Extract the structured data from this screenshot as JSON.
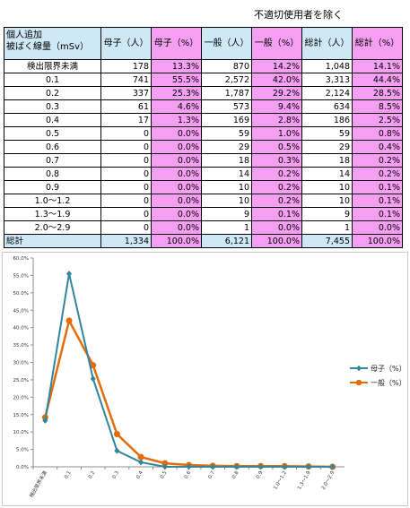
{
  "note": "不適切使用者を除く",
  "table": {
    "header": {
      "label_line1": "個人追加",
      "label_line2": "被ばく線量（mSv）",
      "cols": [
        "母子（人）",
        "母子（%）",
        "一般（人）",
        "一般（%）",
        "総計（人）",
        "総計（%）"
      ]
    },
    "rows": [
      {
        "label": "検出限界未満",
        "c1": "178",
        "c2": "13.3%",
        "c3": "870",
        "c4": "14.2%",
        "c5": "1,048",
        "c6": "14.1%"
      },
      {
        "label": "0.1",
        "c1": "741",
        "c2": "55.5%",
        "c3": "2,572",
        "c4": "42.0%",
        "c5": "3,313",
        "c6": "44.4%"
      },
      {
        "label": "0.2",
        "c1": "337",
        "c2": "25.3%",
        "c3": "1,787",
        "c4": "29.2%",
        "c5": "2,124",
        "c6": "28.5%"
      },
      {
        "label": "0.3",
        "c1": "61",
        "c2": "4.6%",
        "c3": "573",
        "c4": "9.4%",
        "c5": "634",
        "c6": "8.5%"
      },
      {
        "label": "0.4",
        "c1": "17",
        "c2": "1.3%",
        "c3": "169",
        "c4": "2.8%",
        "c5": "186",
        "c6": "2.5%"
      },
      {
        "label": "0.5",
        "c1": "0",
        "c2": "0.0%",
        "c3": "59",
        "c4": "1.0%",
        "c5": "59",
        "c6": "0.8%"
      },
      {
        "label": "0.6",
        "c1": "0",
        "c2": "0.0%",
        "c3": "29",
        "c4": "0.5%",
        "c5": "29",
        "c6": "0.4%"
      },
      {
        "label": "0.7",
        "c1": "0",
        "c2": "0.0%",
        "c3": "18",
        "c4": "0.3%",
        "c5": "18",
        "c6": "0.2%"
      },
      {
        "label": "0.8",
        "c1": "0",
        "c2": "0.0%",
        "c3": "14",
        "c4": "0.2%",
        "c5": "14",
        "c6": "0.2%"
      },
      {
        "label": "0.9",
        "c1": "0",
        "c2": "0.0%",
        "c3": "10",
        "c4": "0.2%",
        "c5": "10",
        "c6": "0.1%"
      },
      {
        "label": "1.0〜1.2",
        "c1": "0",
        "c2": "0.0%",
        "c3": "10",
        "c4": "0.2%",
        "c5": "10",
        "c6": "0.1%"
      },
      {
        "label": "1.3〜1.9",
        "c1": "0",
        "c2": "0.0%",
        "c3": "9",
        "c4": "0.1%",
        "c5": "9",
        "c6": "0.1%"
      },
      {
        "label": "2.0〜2.9",
        "c1": "0",
        "c2": "0.0%",
        "c3": "1",
        "c4": "0.0%",
        "c5": "1",
        "c6": "0.0%"
      }
    ],
    "total": {
      "label": "総計",
      "c1": "1,334",
      "c2": "100.0%",
      "c3": "6,121",
      "c4": "100.0%",
      "c5": "7,455",
      "c6": "100.0%"
    }
  },
  "colors": {
    "blue_cell": "#cfe8f6",
    "pink_cell": "#f59ff2",
    "series1": "#31859c",
    "series2": "#e46c0a"
  },
  "chart_data": {
    "type": "line",
    "categories": [
      "検出限界未満",
      "0.1",
      "0.2",
      "0.3",
      "0.4",
      "0.5",
      "0.6",
      "0.7",
      "0.8",
      "0.9",
      "1.0〜1.2",
      "1.3〜1.9",
      "2.0〜2.9"
    ],
    "series": [
      {
        "name": "母子（%）",
        "values": [
          13.3,
          55.5,
          25.3,
          4.6,
          1.3,
          0.0,
          0.0,
          0.0,
          0.0,
          0.0,
          0.0,
          0.0,
          0.0
        ]
      },
      {
        "name": "一般（%）",
        "values": [
          14.2,
          42.0,
          29.2,
          9.4,
          2.8,
          1.0,
          0.5,
          0.3,
          0.2,
          0.2,
          0.2,
          0.1,
          0.0
        ]
      }
    ],
    "ylim": [
      0,
      60
    ],
    "yticks": [
      "0.0%",
      "5.0%",
      "10.0%",
      "15.0%",
      "20.0%",
      "25.0%",
      "30.0%",
      "35.0%",
      "40.0%",
      "45.0%",
      "50.0%",
      "55.0%",
      "60.0%"
    ],
    "grid": false,
    "legend": "right"
  }
}
